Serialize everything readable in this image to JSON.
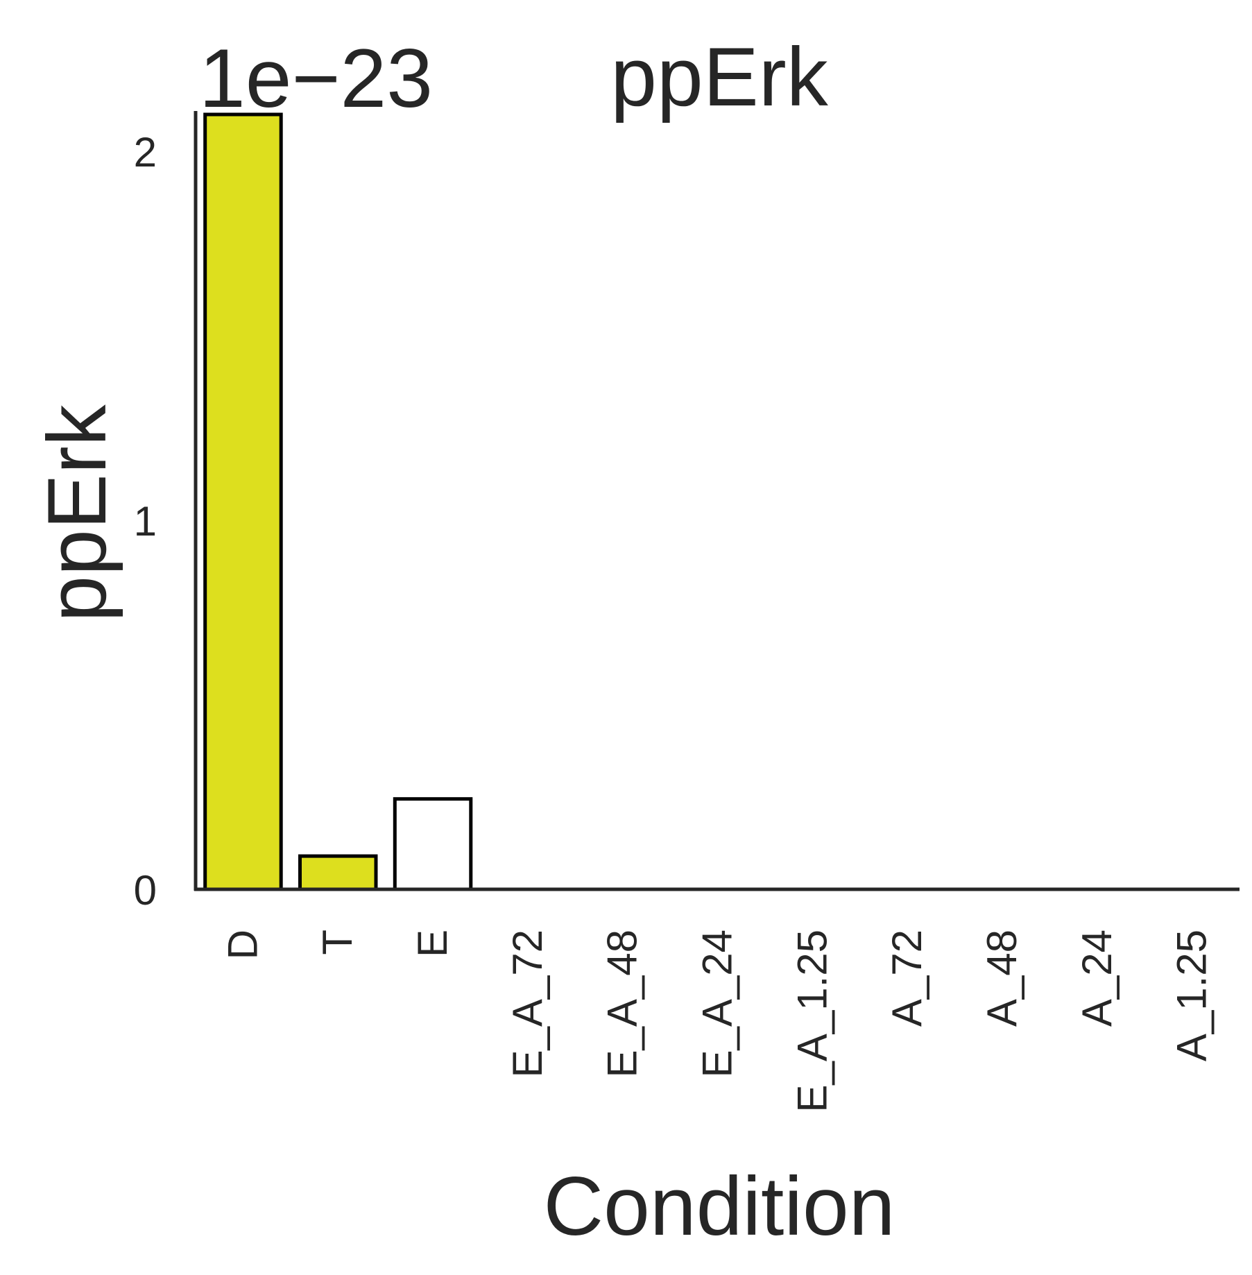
{
  "chart_data": {
    "type": "bar",
    "title": "ppErk",
    "xlabel": "Condition",
    "ylabel": "ppErk",
    "y_offset_label": "1e−23",
    "categories": [
      "D",
      "T",
      "E",
      "E_A_72",
      "E_A_48",
      "E_A_24",
      "E_A_1.25",
      "A_72",
      "A_48",
      "A_24",
      "A_1.25"
    ],
    "values": [
      2.1,
      0.09,
      0.245,
      0,
      0,
      0,
      0,
      0,
      0,
      0,
      0
    ],
    "bar_colors": [
      "#dddf1e",
      "#dddf1e",
      "#ffffff",
      "#ffffff",
      "#ffffff",
      "#ffffff",
      "#ffffff",
      "#ffffff",
      "#ffffff",
      "#ffffff",
      "#ffffff"
    ],
    "yticks": [
      "0",
      "1",
      "2"
    ],
    "ylim": [
      0,
      2.1
    ],
    "grid": false,
    "legend": "none"
  }
}
